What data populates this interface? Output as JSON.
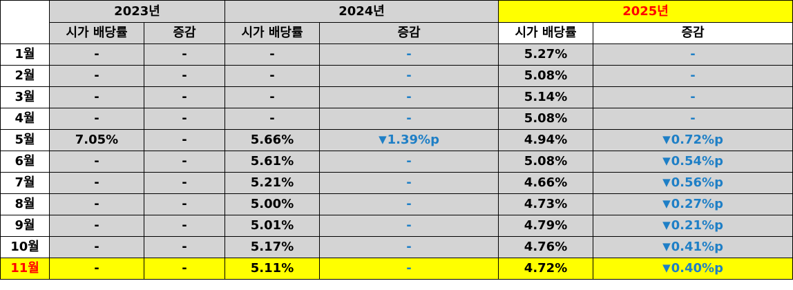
{
  "colors": {
    "gray": "#d4d4d4",
    "yellow": "#ffff00",
    "red": "#ff0000",
    "blue": "#1e7fc6",
    "border": "#000000"
  },
  "years": [
    "2023년",
    "2024년",
    "2025년"
  ],
  "subheaders": {
    "yield": "시가 배당률",
    "change": "증감"
  },
  "decrease_icon": "down-triangle-icon",
  "rows": [
    {
      "month": "1월",
      "y2023": "-",
      "c2023": "-",
      "y2024": "-",
      "c2024": "-",
      "y2025": "5.27%",
      "c2025": "-"
    },
    {
      "month": "2월",
      "y2023": "-",
      "c2023": "-",
      "y2024": "-",
      "c2024": "-",
      "y2025": "5.08%",
      "c2025": "-"
    },
    {
      "month": "3월",
      "y2023": "-",
      "c2023": "-",
      "y2024": "-",
      "c2024": "-",
      "y2025": "5.14%",
      "c2025": "-"
    },
    {
      "month": "4월",
      "y2023": "-",
      "c2023": "-",
      "y2024": "-",
      "c2024": "-",
      "y2025": "5.08%",
      "c2025": "-"
    },
    {
      "month": "5월",
      "y2023": "7.05%",
      "c2023": "-",
      "y2024": "5.66%",
      "c2024": "1.39%p",
      "y2025": "4.94%",
      "c2025": "0.72%p"
    },
    {
      "month": "6월",
      "y2023": "-",
      "c2023": "-",
      "y2024": "5.61%",
      "c2024": "-",
      "y2025": "5.08%",
      "c2025": "0.54%p"
    },
    {
      "month": "7월",
      "y2023": "-",
      "c2023": "-",
      "y2024": "5.21%",
      "c2024": "-",
      "y2025": "4.66%",
      "c2025": "0.56%p"
    },
    {
      "month": "8월",
      "y2023": "-",
      "c2023": "-",
      "y2024": "5.00%",
      "c2024": "-",
      "y2025": "4.73%",
      "c2025": "0.27%p"
    },
    {
      "month": "9월",
      "y2023": "-",
      "c2023": "-",
      "y2024": "5.01%",
      "c2024": "-",
      "y2025": "4.79%",
      "c2025": "0.21%p"
    },
    {
      "month": "10월",
      "y2023": "-",
      "c2023": "-",
      "y2024": "5.17%",
      "c2024": "-",
      "y2025": "4.76%",
      "c2025": "0.41%p"
    },
    {
      "month": "11월",
      "y2023": "-",
      "c2023": "-",
      "y2024": "5.11%",
      "c2024": "-",
      "y2025": "4.72%",
      "c2025": "0.40%p"
    }
  ]
}
